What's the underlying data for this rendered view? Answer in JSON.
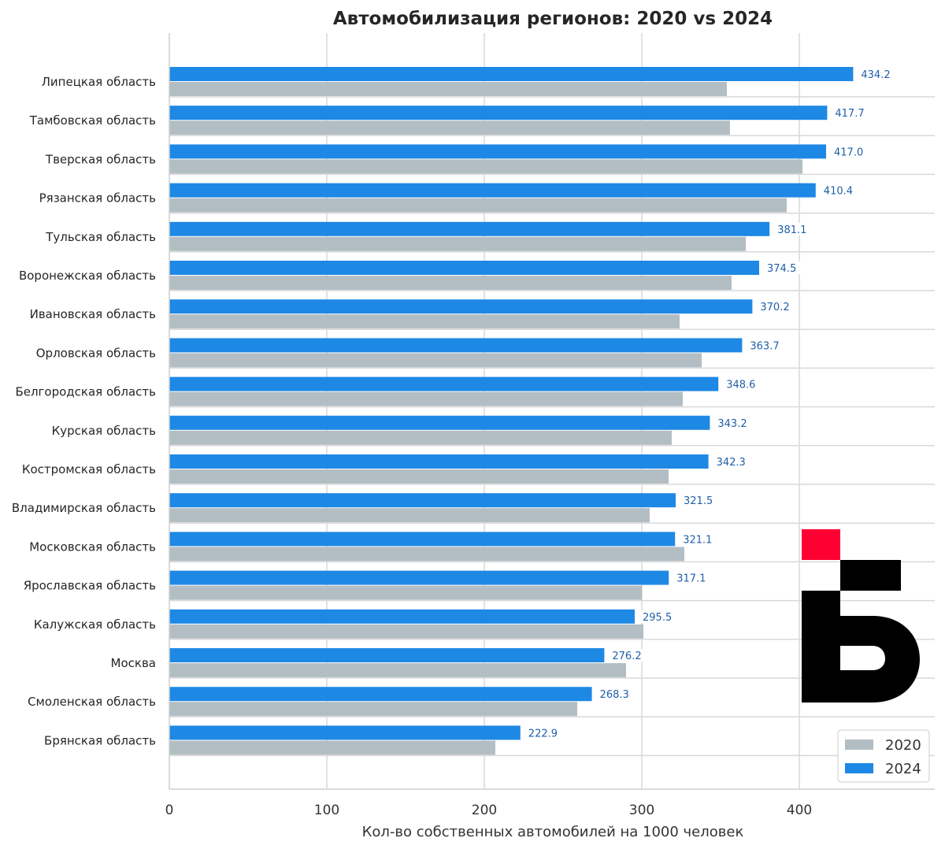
{
  "chart_data": {
    "type": "bar",
    "orientation": "horizontal",
    "title": "Автомобилизация регионов: 2020 vs 2024",
    "xlabel": "Кол-во собственных автомобилей на 1000 человек",
    "ylabel": "",
    "xlim": [
      0,
      485
    ],
    "xticks": [
      0,
      100,
      200,
      300,
      400
    ],
    "grid": true,
    "legend_position": "bottom-right",
    "categories": [
      "Липецкая область",
      "Тамбовская область",
      "Тверская область",
      "Рязанская область",
      "Тульская область",
      "Воронежская область",
      "Ивановская область",
      "Орловская область",
      "Белгородская область",
      "Курская область",
      "Костромская область",
      "Владимирская область",
      "Московская область",
      "Ярославская область",
      "Калужская область",
      "Москва",
      "Смоленская область",
      "Брянская область"
    ],
    "series": [
      {
        "name": "2024",
        "color": "#1e88e5",
        "values": [
          434.2,
          417.7,
          417.0,
          410.4,
          381.1,
          374.5,
          370.2,
          363.7,
          348.6,
          343.2,
          342.3,
          321.5,
          321.1,
          317.1,
          295.5,
          276.2,
          268.3,
          222.9
        ],
        "labels": [
          "434.2",
          "417.7",
          "417.0",
          "410.4",
          "381.1",
          "374.5",
          "370.2",
          "363.7",
          "348.6",
          "343.2",
          "342.3",
          "321.5",
          "321.1",
          "317.1",
          "295.5",
          "276.2",
          "268.3",
          "222.9"
        ]
      },
      {
        "name": "2020",
        "color": "#b3bec4",
        "values": [
          354,
          356,
          402,
          392,
          366,
          357,
          324,
          338,
          326,
          319,
          317,
          305,
          327,
          300,
          301,
          290,
          259,
          207
        ]
      }
    ],
    "legend": [
      {
        "name": "2020",
        "color": "#b3bec4"
      },
      {
        "name": "2024",
        "color": "#1e88e5"
      }
    ]
  },
  "logo": {
    "name": "Ъ",
    "accent": "#ff0033",
    "color": "#000000"
  }
}
